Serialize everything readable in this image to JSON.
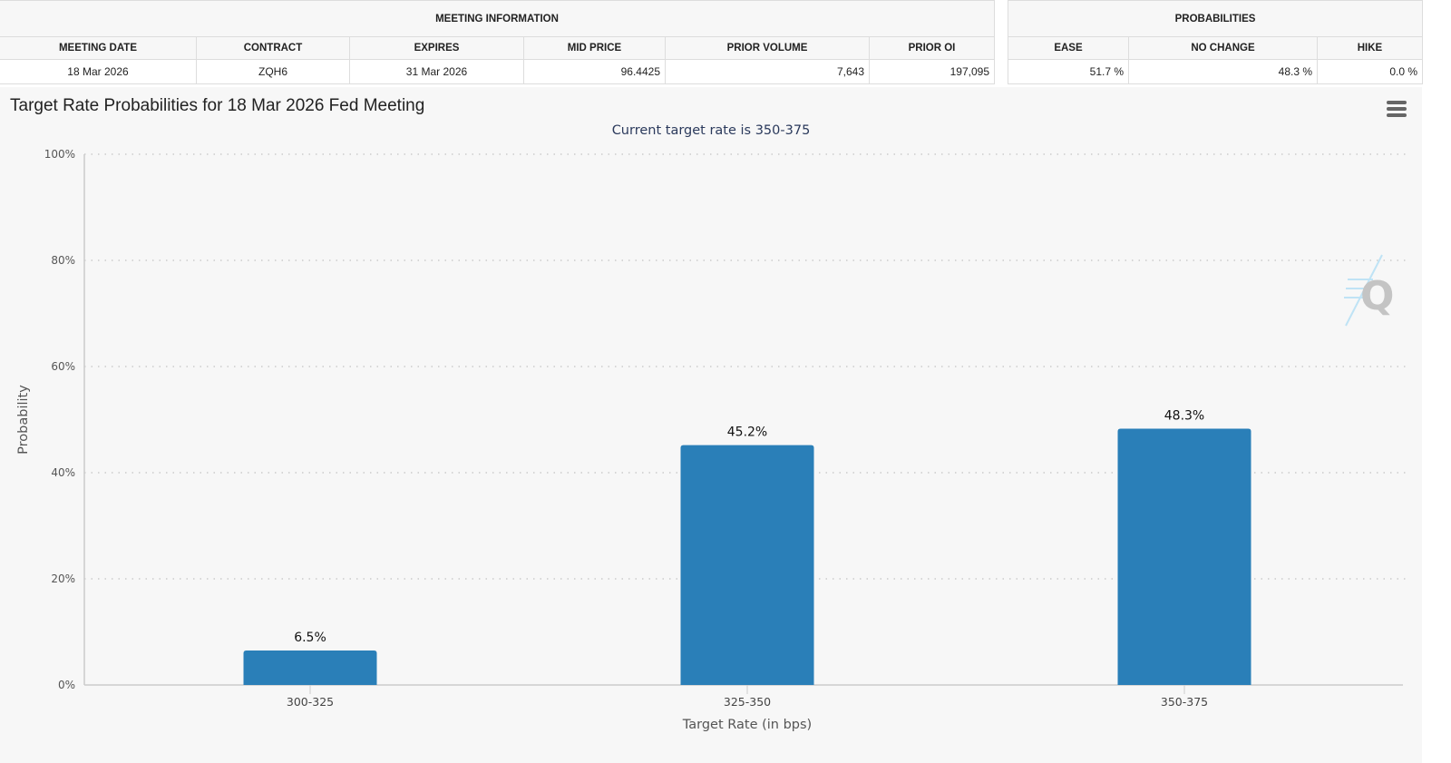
{
  "meeting_info": {
    "title": "MEETING INFORMATION",
    "headers": [
      "MEETING DATE",
      "CONTRACT",
      "EXPIRES",
      "MID PRICE",
      "PRIOR VOLUME",
      "PRIOR OI"
    ],
    "values": [
      "18 Mar 2026",
      "ZQH6",
      "31 Mar 2026",
      "96.4425",
      "7,643",
      "197,095"
    ]
  },
  "probabilities": {
    "title": "PROBABILITIES",
    "headers": [
      "EASE",
      "NO CHANGE",
      "HIKE"
    ],
    "values": [
      "51.7 %",
      "48.3 %",
      "0.0 %"
    ]
  },
  "chart_menu_icon": "hamburger-menu-icon",
  "watermark": "Q",
  "chart_data": {
    "type": "bar",
    "title": "Target Rate Probabilities for 18 Mar 2026 Fed Meeting",
    "subtitle": "Current target rate is 350-375",
    "xlabel": "Target Rate (in bps)",
    "ylabel": "Probability",
    "categories": [
      "300-325",
      "325-350",
      "350-375"
    ],
    "values": [
      6.5,
      45.2,
      48.3
    ],
    "data_labels": [
      "6.5%",
      "45.2%",
      "48.3%"
    ],
    "ylim": [
      0,
      100
    ],
    "yticks": [
      "0%",
      "20%",
      "40%",
      "60%",
      "80%",
      "100%"
    ],
    "grid": true,
    "bar_color": "#2a7fb8"
  }
}
